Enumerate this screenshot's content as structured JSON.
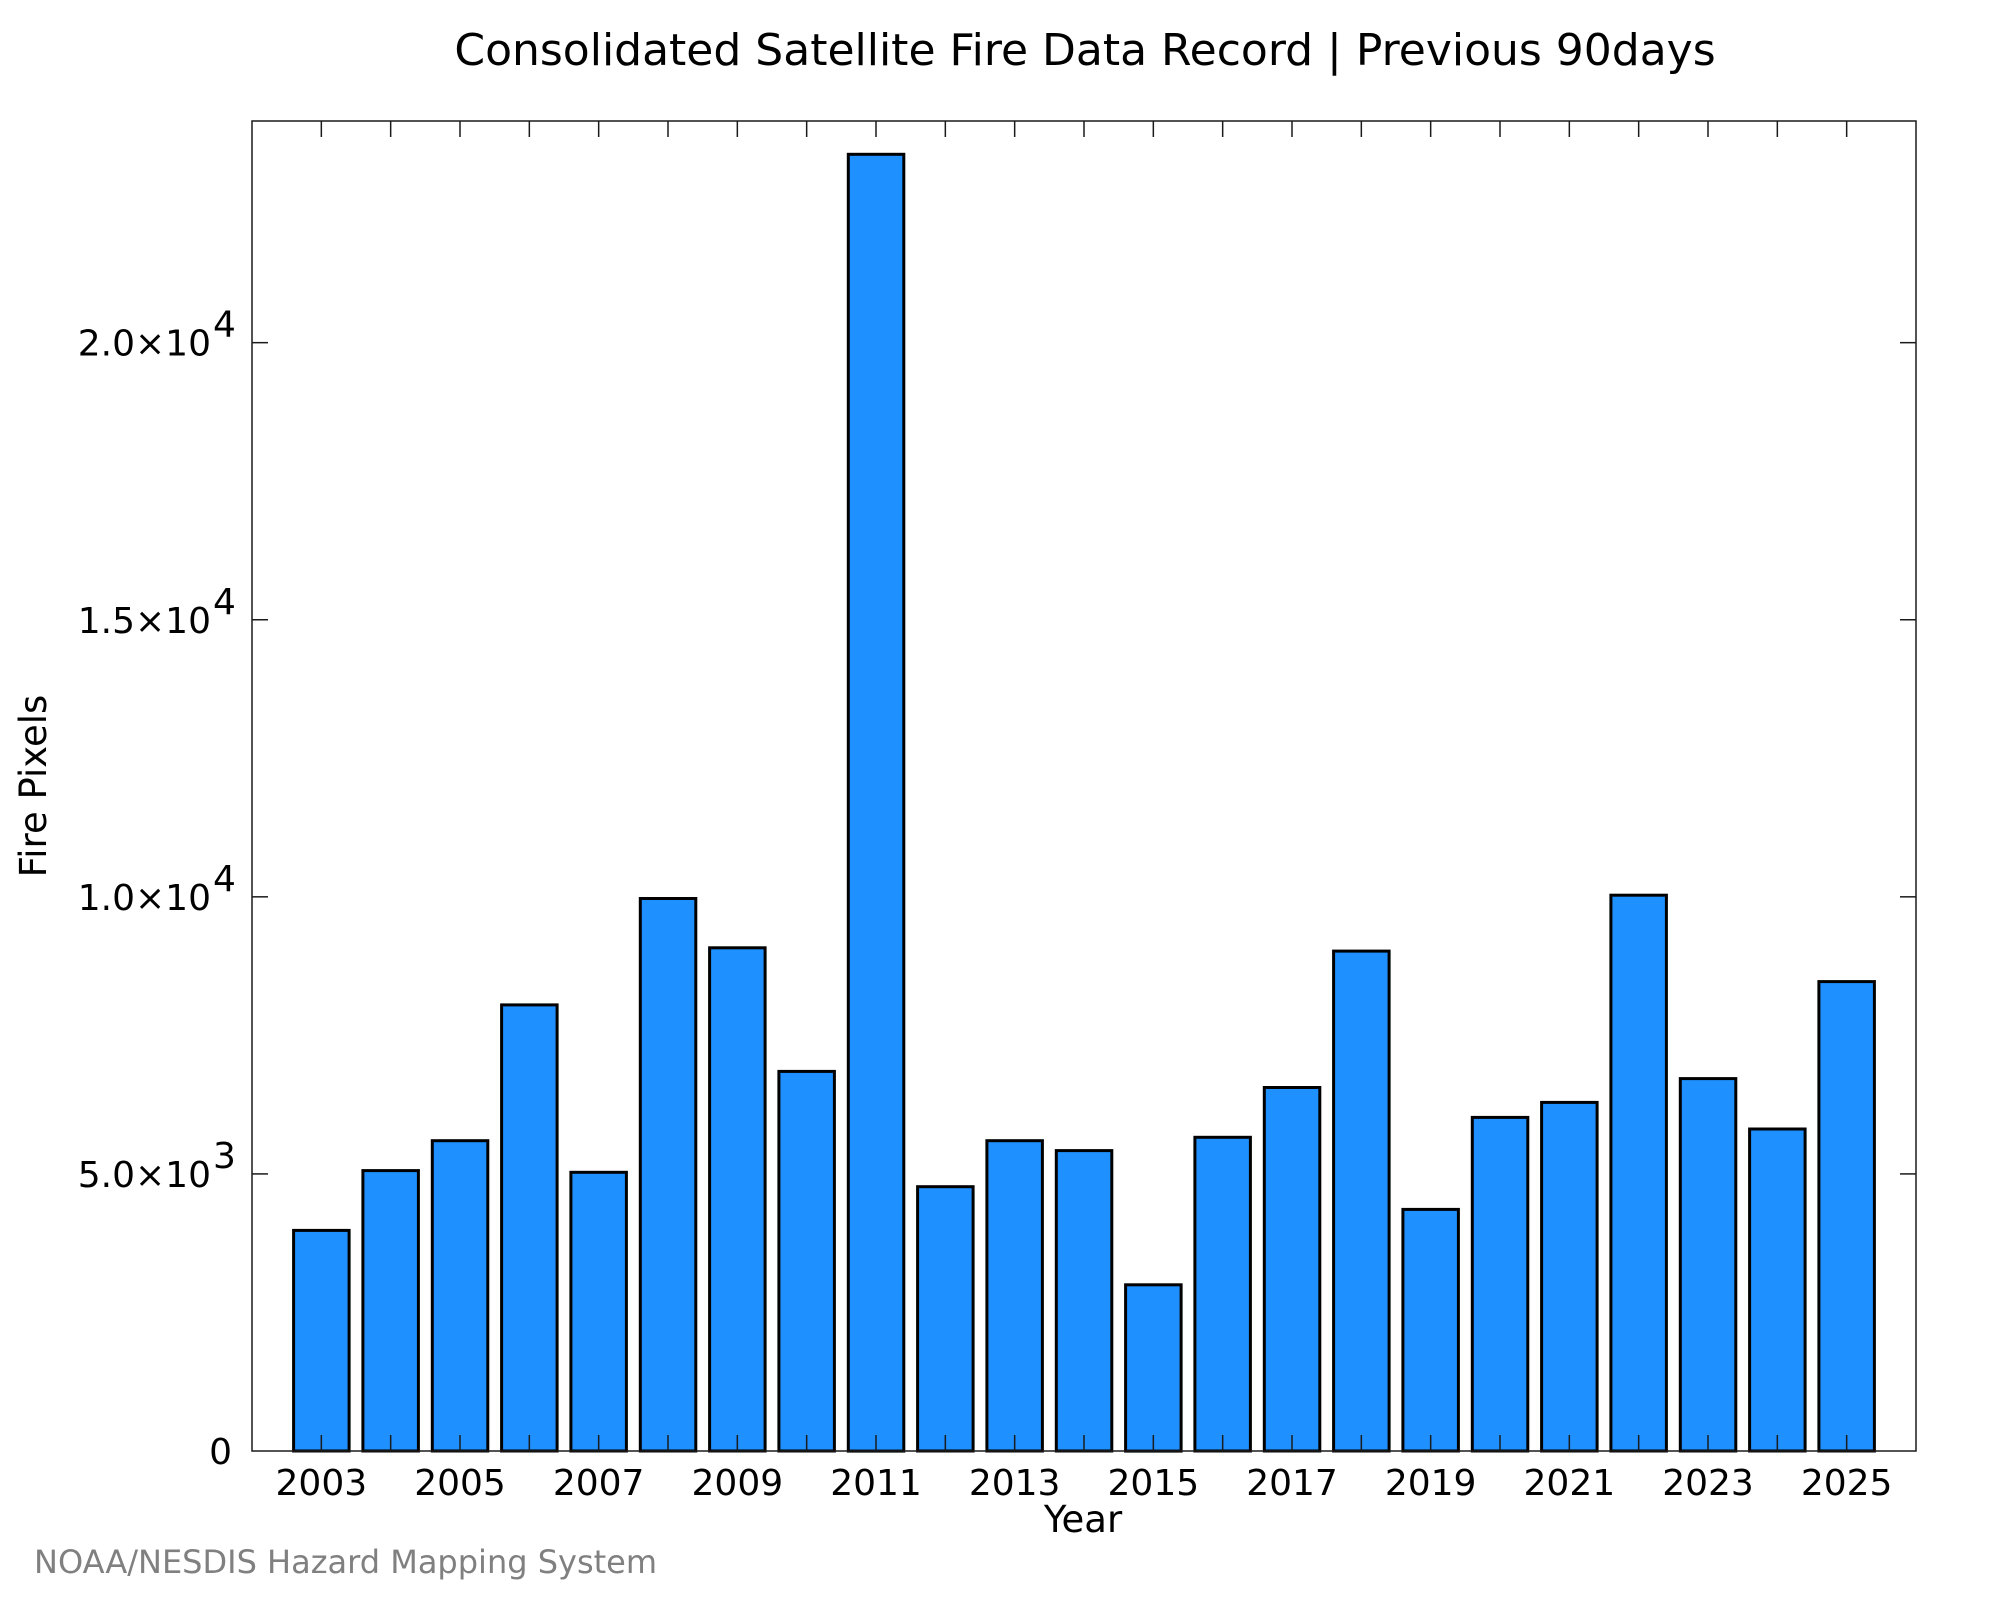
{
  "chart_data": {
    "type": "bar",
    "title": "Consolidated Satellite Fire Data Record | Previous 90days",
    "xlabel": "Year",
    "ylabel": "Fire Pixels",
    "credit": "NOAA/NESDIS Hazard Mapping System",
    "bar_color": "#1E90FF",
    "edge_color": "#000000",
    "categories": [
      "2003",
      "2004",
      "2005",
      "2006",
      "2007",
      "2008",
      "2009",
      "2010",
      "2011",
      "2012",
      "2013",
      "2014",
      "2015",
      "2016",
      "2017",
      "2018",
      "2019",
      "2020",
      "2021",
      "2022",
      "2023",
      "2024",
      "2025"
    ],
    "values": [
      3980,
      5060,
      5600,
      8050,
      5030,
      9970,
      9080,
      6850,
      23400,
      4770,
      5600,
      5420,
      3000,
      5660,
      6560,
      9020,
      4360,
      6020,
      6290,
      10030,
      6720,
      5810,
      8470
    ],
    "xlim": [
      2002.0,
      2026.0
    ],
    "ylim": [
      0,
      24000
    ],
    "x_ticks": [
      {
        "value": 2003,
        "label": "2003"
      },
      {
        "value": 2005,
        "label": "2005"
      },
      {
        "value": 2007,
        "label": "2007"
      },
      {
        "value": 2009,
        "label": "2009"
      },
      {
        "value": 2011,
        "label": "2011"
      },
      {
        "value": 2013,
        "label": "2013"
      },
      {
        "value": 2015,
        "label": "2015"
      },
      {
        "value": 2017,
        "label": "2017"
      },
      {
        "value": 2019,
        "label": "2019"
      },
      {
        "value": 2021,
        "label": "2021"
      },
      {
        "value": 2023,
        "label": "2023"
      },
      {
        "value": 2025,
        "label": "2025"
      }
    ],
    "y_ticks": [
      {
        "value": 0,
        "mantissa": "0",
        "exp": ""
      },
      {
        "value": 5000,
        "mantissa": "5.0×10",
        "exp": "3"
      },
      {
        "value": 10000,
        "mantissa": "1.0×10",
        "exp": "4"
      },
      {
        "value": 15000,
        "mantissa": "1.5×10",
        "exp": "4"
      },
      {
        "value": 20000,
        "mantissa": "2.0×10",
        "exp": "4"
      }
    ],
    "grid": false,
    "legend": "none"
  }
}
